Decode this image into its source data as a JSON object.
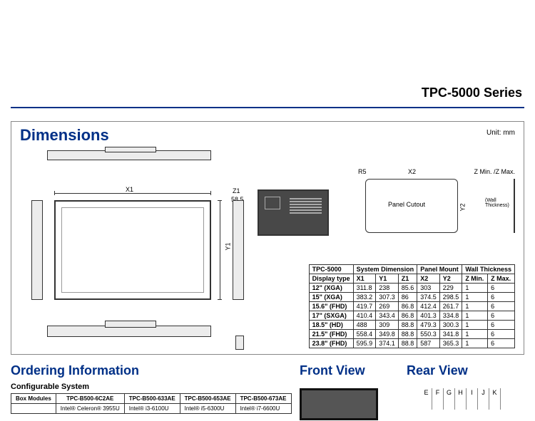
{
  "series_title": "TPC-5000 Series",
  "dimensions": {
    "heading": "Dimensions",
    "unit": "Unit: mm",
    "labels": {
      "x1": "X1",
      "y1": "Y1",
      "z1": "Z1",
      "z1_sub": "58.5",
      "r5": "R5",
      "x2": "X2",
      "y2": "Y2",
      "panel_cutout": "Panel Cutout",
      "wall_thickness": "(Wall Thickness)",
      "zminmax": "Z Min. /Z Max."
    },
    "table": {
      "headers_row1": [
        "TPC-5000",
        "System Dimension",
        "Panel Mount",
        "Wall Thickness"
      ],
      "headers_row2": [
        "Display type",
        "X1",
        "Y1",
        "Z1",
        "X2",
        "Y2",
        "Z Min.",
        "Z Max."
      ],
      "rows": [
        [
          "12\" (XGA)",
          "311.8",
          "238",
          "85.6",
          "303",
          "229",
          "1",
          "6"
        ],
        [
          "15\" (XGA)",
          "383.2",
          "307.3",
          "86",
          "374.5",
          "298.5",
          "1",
          "6"
        ],
        [
          "15.6\" (FHD)",
          "419.7",
          "269",
          "86.8",
          "412.4",
          "261.7",
          "1",
          "6"
        ],
        [
          "17\" (SXGA)",
          "410.4",
          "343.4",
          "86.8",
          "401.3",
          "334.8",
          "1",
          "6"
        ],
        [
          "18.5\"  (HD)",
          "488",
          "309",
          "88.8",
          "479.3",
          "300.3",
          "1",
          "6"
        ],
        [
          "21.5\" (FHD)",
          "558.4",
          "349.8",
          "88.8",
          "550.3",
          "341.8",
          "1",
          "6"
        ],
        [
          "23.8\" (FHD)",
          "595.9",
          "374.1",
          "88.8",
          "587",
          "365.3",
          "1",
          "6"
        ]
      ]
    }
  },
  "ordering": {
    "heading": "Ordering Information",
    "subheading": "Configurable System",
    "table": {
      "row0": [
        "Box Modules",
        "TPC-B500-6C2AE",
        "TPC-B500-633AE",
        "TPC-B500-653AE",
        "TPC-B500-673AE"
      ],
      "row1": [
        "",
        "Intel® Celeron® 3955U",
        "Intel® i3-6100U",
        "Intel® i5-6300U",
        "Intel® i7-6600U"
      ]
    }
  },
  "front_view": "Front View",
  "rear_view": "Rear View",
  "rear_letters": [
    "E",
    "F",
    "G",
    "H",
    "I",
    "J",
    "K"
  ],
  "colors": {
    "brand": "#003087",
    "panel_dark": "#484848",
    "strip": "#ececec"
  }
}
